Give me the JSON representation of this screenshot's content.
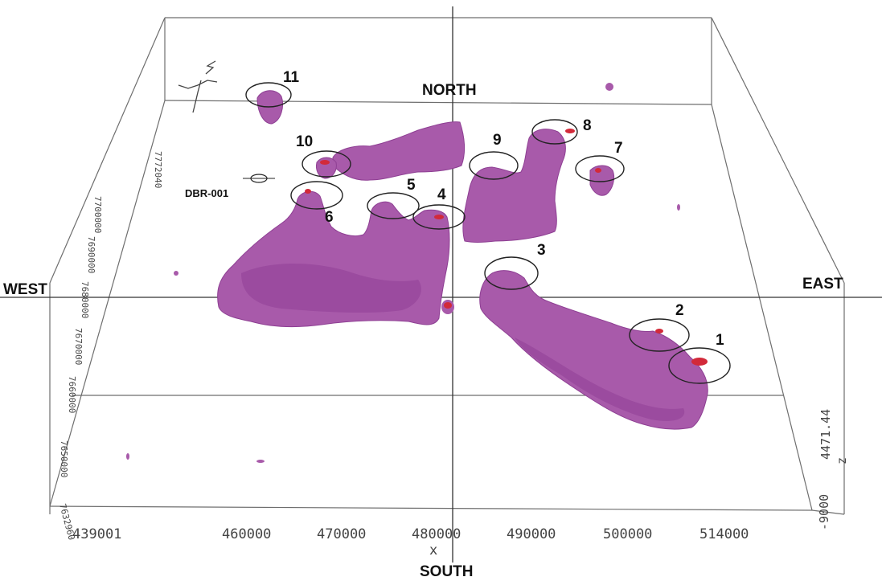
{
  "directions": {
    "north": "NORTH",
    "south": "SOUTH",
    "east": "EAST",
    "west": "WEST"
  },
  "targets": [
    "1",
    "2",
    "3",
    "4",
    "5",
    "6",
    "7",
    "8",
    "9",
    "10",
    "11"
  ],
  "drillhole": "DBR-001",
  "x_axis": {
    "ticks": [
      "439001",
      "460000",
      "470000",
      "480000",
      "490000",
      "500000",
      "514000"
    ],
    "label": "x"
  },
  "y_axis": {
    "ticks": [
      "7632960",
      "7650000",
      "7660000",
      "7670000",
      "7680000",
      "7690000",
      "7700000",
      "7772040"
    ]
  },
  "z_axis": {
    "top": "4471.44",
    "bottom": "-9000",
    "label": "z"
  },
  "colors": {
    "body_fill": "#a85aaa",
    "high_spot": "#d22a3a",
    "frame": "#6e6e6e"
  }
}
